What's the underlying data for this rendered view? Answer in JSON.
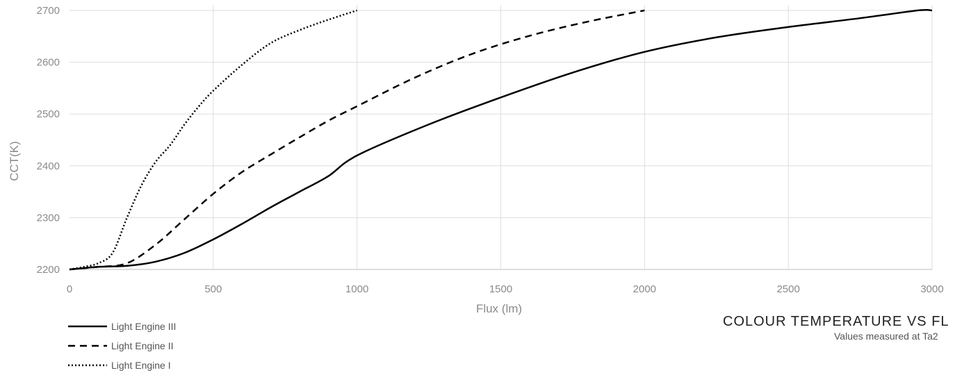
{
  "chart_data": {
    "type": "line",
    "title": "COLOUR TEMPERATURE VS FL",
    "subtitle": "Values measured at Ta2",
    "xlabel": "Flux (lm)",
    "ylabel": "CCT(K)",
    "xlim": [
      0,
      3000
    ],
    "ylim": [
      2200,
      2700
    ],
    "xticks": [
      0,
      500,
      1000,
      1500,
      2000,
      2500,
      3000
    ],
    "yticks": [
      2200,
      2300,
      2400,
      2500,
      2600,
      2700
    ],
    "grid": true,
    "legend_position": "bottom-left",
    "series": [
      {
        "name": "Light Engine III",
        "line_style": "solid",
        "color": "#000000",
        "x": [
          0,
          100,
          200,
          300,
          400,
          500,
          600,
          700,
          800,
          900,
          1000,
          1250,
          1500,
          1750,
          2000,
          2250,
          2500,
          2750,
          2950,
          3000
        ],
        "y": [
          2200,
          2205,
          2207,
          2215,
          2232,
          2258,
          2288,
          2320,
          2350,
          2380,
          2420,
          2480,
          2532,
          2580,
          2620,
          2648,
          2668,
          2685,
          2700,
          2700
        ]
      },
      {
        "name": "Light Engine II",
        "line_style": "dashed",
        "color": "#000000",
        "x": [
          0,
          100,
          200,
          300,
          400,
          500,
          600,
          700,
          800,
          900,
          1000,
          1200,
          1400,
          1600,
          1800,
          2000
        ],
        "y": [
          2200,
          2205,
          2212,
          2248,
          2297,
          2346,
          2388,
          2422,
          2455,
          2487,
          2515,
          2570,
          2616,
          2651,
          2678,
          2700
        ]
      },
      {
        "name": "Light Engine I",
        "line_style": "dotted",
        "color": "#000000",
        "x": [
          0,
          50,
          100,
          150,
          200,
          250,
          300,
          350,
          400,
          450,
          500,
          600,
          700,
          800,
          900,
          1000
        ],
        "y": [
          2200,
          2205,
          2212,
          2232,
          2300,
          2362,
          2408,
          2440,
          2480,
          2515,
          2545,
          2595,
          2637,
          2662,
          2682,
          2700
        ]
      }
    ]
  }
}
